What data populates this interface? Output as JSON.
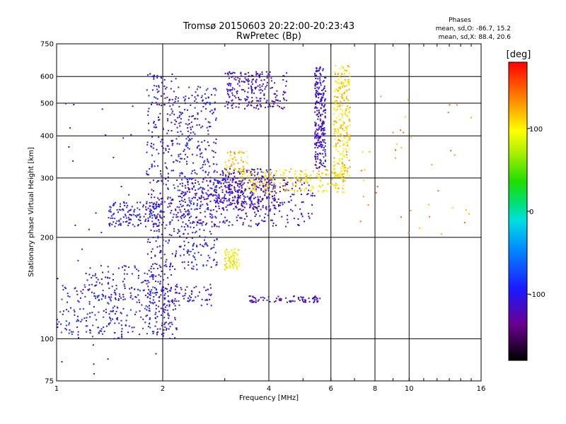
{
  "chart_data": {
    "type": "scatter",
    "title": "Tromsø 20150603 20:22:00-20:23:43",
    "subtitle": "RwPretec (Bp)",
    "stats": {
      "heading": "Phases",
      "line_o": "mean, sd,O: -86.7, 15.2",
      "line_x": "mean, sd,X:  88.4, 20.6"
    },
    "xlabel": "Frequency [MHz]",
    "ylabel": "Stationary phase Virtual Height [km]",
    "x_scale": "log",
    "y_scale": "log",
    "xlim": [
      1,
      16
    ],
    "ylim": [
      75,
      750
    ],
    "x_tick_values": [
      1,
      2,
      4,
      6,
      8,
      10,
      16
    ],
    "x_tick_labels": [
      "1",
      "2",
      "4",
      "6",
      "8",
      "10",
      "16"
    ],
    "y_tick_values": [
      75,
      100,
      200,
      300,
      400,
      500,
      600,
      750
    ],
    "y_tick_labels": [
      "75",
      "100",
      "200",
      "300",
      "400",
      "500",
      "600",
      "750"
    ],
    "grid": true,
    "colorbar": {
      "label": "[deg]",
      "range": [
        -180,
        180
      ],
      "tick_values": [
        100,
        0,
        -100
      ],
      "tick_labels": [
        "100",
        "0",
        "-100"
      ]
    },
    "clusters": [
      {
        "name_ref": "o-trace-low",
        "x_range": [
          1.0,
          2.1
        ],
        "y_range": [
          100,
          145
        ],
        "phase": -95,
        "count": 230
      },
      {
        "name_ref": "o-trace-low-upper",
        "x_range": [
          1.2,
          2.0
        ],
        "y_range": [
          130,
          165
        ],
        "phase": -100,
        "count": 110
      },
      {
        "name_ref": "lower-spread-2to2.8",
        "x_range": [
          2.0,
          2.75
        ],
        "y_range": [
          125,
          145
        ],
        "phase": -105,
        "count": 70
      },
      {
        "name_ref": "band-1.4to2",
        "x_range": [
          1.4,
          2.0
        ],
        "y_range": [
          215,
          255
        ],
        "phase": -100,
        "count": 160
      },
      {
        "name_ref": "vertical-spread-2",
        "x_range": [
          1.8,
          2.2
        ],
        "y_range": [
          100,
          620
        ],
        "phase": -105,
        "count": 380
      },
      {
        "name_ref": "spread-2.2to2.8",
        "x_range": [
          2.2,
          2.85
        ],
        "y_range": [
          160,
          560
        ],
        "phase": -100,
        "count": 420
      },
      {
        "name_ref": "f-layer-trace",
        "x_range": [
          2.2,
          5.4
        ],
        "y_range": [
          215,
          300
        ],
        "phase": -110,
        "count": 300
      },
      {
        "name_ref": "spread-2.8to4",
        "x_range": [
          2.8,
          4.2
        ],
        "y_range": [
          240,
          320
        ],
        "phase": -115,
        "count": 320
      },
      {
        "name_ref": "upper-band-3to4.5",
        "x_range": [
          3.0,
          4.5
        ],
        "y_range": [
          480,
          620
        ],
        "phase": -115,
        "count": 220
      },
      {
        "name_ref": "o-cusp-5.6",
        "x_range": [
          5.4,
          5.8
        ],
        "y_range": [
          320,
          640
        ],
        "phase": -110,
        "count": 260
      },
      {
        "name_ref": "band-130km",
        "x_range": [
          3.5,
          5.6
        ],
        "y_range": [
          128,
          134
        ],
        "phase": -115,
        "count": 80
      },
      {
        "name_ref": "x-trace-yellow",
        "x_range": [
          3.3,
          6.6
        ],
        "y_range": [
          270,
          320
        ],
        "phase": 110,
        "count": 220
      },
      {
        "name_ref": "x-cusp-6.5",
        "x_range": [
          6.1,
          6.8
        ],
        "y_range": [
          300,
          650
        ],
        "phase": 110,
        "count": 260
      },
      {
        "name_ref": "x-blob-3.1",
        "x_range": [
          3.0,
          3.3
        ],
        "y_range": [
          160,
          185
        ],
        "phase": 95,
        "count": 70
      },
      {
        "name_ref": "x-blob-3.2-upper",
        "x_range": [
          3.0,
          3.5
        ],
        "y_range": [
          310,
          360
        ],
        "phase": 115,
        "count": 50
      },
      {
        "name_ref": "sparse-high-freq",
        "x_range": [
          7.0,
          15.0
        ],
        "y_range": [
          200,
          530
        ],
        "phase": 130,
        "count": 40
      },
      {
        "name_ref": "sparse-low-field",
        "x_range": [
          1.0,
          2.0
        ],
        "y_range": [
          76,
          520
        ],
        "phase": -110,
        "count": 40
      }
    ]
  }
}
